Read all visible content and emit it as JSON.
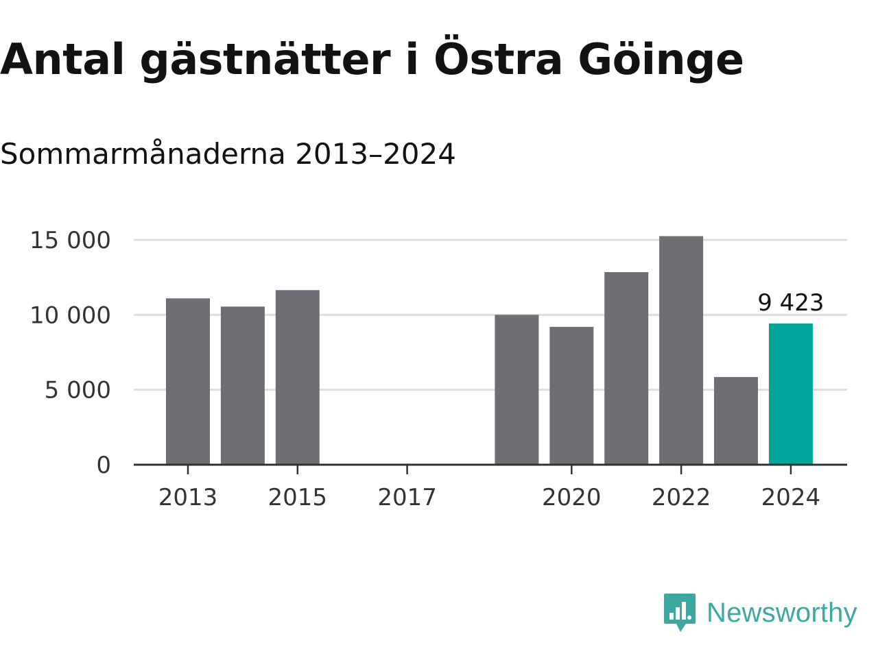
{
  "header": {
    "title": "Antal gästnätter i Östra Göinge",
    "subtitle": "Sommarmånaderna 2013–2024"
  },
  "brand": {
    "name": "Newsworthy",
    "color": "#3fa7a2",
    "icon": "newsworthy-logo-icon"
  },
  "colors": {
    "bar": "#6f6e74",
    "highlight": "#00a499",
    "grid": "#dddddd",
    "axis": "#333333"
  },
  "chart_data": {
    "type": "bar",
    "title": "Antal gästnätter i Östra Göinge",
    "subtitle": "Sommarmånaderna 2013–2024",
    "x": [
      2013,
      2014,
      2015,
      2016,
      2017,
      2018,
      2019,
      2020,
      2021,
      2022,
      2023,
      2024
    ],
    "values": [
      11100,
      10550,
      11650,
      null,
      null,
      null,
      10000,
      9200,
      12850,
      15250,
      5850,
      9423
    ],
    "xticks": [
      2013,
      2015,
      2017,
      2020,
      2022,
      2024
    ],
    "xtick_labels": [
      "2013",
      "2015",
      "2017",
      "2020",
      "2022",
      "2024"
    ],
    "yticks": [
      0,
      5000,
      10000,
      15000
    ],
    "ytick_labels": [
      "0",
      "5 000",
      "10 000",
      "15 000"
    ],
    "ylim": [
      0,
      15000
    ],
    "grid": true,
    "highlight": {
      "x": 2024,
      "value": 9423,
      "label": "9 423"
    }
  }
}
